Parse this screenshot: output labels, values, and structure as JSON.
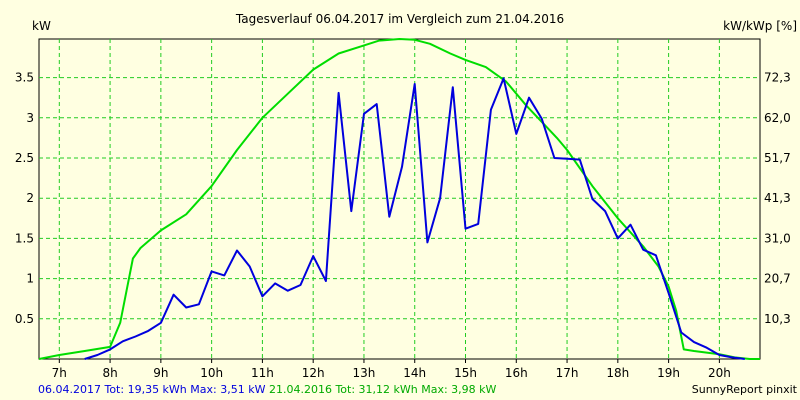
{
  "chart_data": {
    "type": "line",
    "title": "Tagesverlauf 06.04.2017 im Vergleich zum 21.04.2016",
    "y_left_label": "kW",
    "y_right_label": "kW/kWp [%]",
    "xlim": [
      6.6,
      20.8
    ],
    "ylim": [
      0,
      3.98
    ],
    "x_ticks": [
      {
        "x": 7,
        "label": "7h"
      },
      {
        "x": 8,
        "label": "8h"
      },
      {
        "x": 9,
        "label": "9h"
      },
      {
        "x": 10,
        "label": "10h"
      },
      {
        "x": 11,
        "label": "11h"
      },
      {
        "x": 12,
        "label": "12h"
      },
      {
        "x": 13,
        "label": "13h"
      },
      {
        "x": 14,
        "label": "14h"
      },
      {
        "x": 15,
        "label": "15h"
      },
      {
        "x": 16,
        "label": "16h"
      },
      {
        "x": 17,
        "label": "17h"
      },
      {
        "x": 18,
        "label": "18h"
      },
      {
        "x": 19,
        "label": "19h"
      },
      {
        "x": 20,
        "label": "20h"
      }
    ],
    "y_left_ticks": [
      {
        "y": 0.5,
        "label": "0.5"
      },
      {
        "y": 1,
        "label": "1"
      },
      {
        "y": 1.5,
        "label": "1.5"
      },
      {
        "y": 2,
        "label": "2"
      },
      {
        "y": 2.5,
        "label": "2.5"
      },
      {
        "y": 3,
        "label": "3"
      },
      {
        "y": 3.5,
        "label": "3.5"
      }
    ],
    "y_right_ticks": [
      {
        "y": 0.5,
        "label": "10,3"
      },
      {
        "y": 1,
        "label": "20,7"
      },
      {
        "y": 1.5,
        "label": "31,0"
      },
      {
        "y": 2,
        "label": "41,3"
      },
      {
        "y": 2.5,
        "label": "51,7"
      },
      {
        "y": 3,
        "label": "62,0"
      },
      {
        "y": 3.5,
        "label": "72,3"
      }
    ],
    "grid": true,
    "series": [
      {
        "name": "06.04.2017",
        "color": "#0000dd",
        "x": [
          7.5,
          7.75,
          8.0,
          8.25,
          8.5,
          8.75,
          9.0,
          9.25,
          9.5,
          9.75,
          10.0,
          10.25,
          10.5,
          10.75,
          11.0,
          11.25,
          11.5,
          11.75,
          12.0,
          12.25,
          12.5,
          12.75,
          13.0,
          13.25,
          13.5,
          13.75,
          14.0,
          14.25,
          14.5,
          14.75,
          15.0,
          15.25,
          15.5,
          15.75,
          16.0,
          16.25,
          16.5,
          16.75,
          17.0,
          17.25,
          17.5,
          17.75,
          18.0,
          18.25,
          18.5,
          18.75,
          19.0,
          19.25,
          19.5,
          19.75,
          20.0,
          20.25,
          20.5
        ],
        "y": [
          0.0,
          0.05,
          0.12,
          0.22,
          0.28,
          0.35,
          0.45,
          0.8,
          0.64,
          0.68,
          1.09,
          1.04,
          1.35,
          1.15,
          0.78,
          0.94,
          0.85,
          0.92,
          1.28,
          0.97,
          3.31,
          1.84,
          3.05,
          3.17,
          1.77,
          2.39,
          3.42,
          1.45,
          2.0,
          3.38,
          1.62,
          1.68,
          3.1,
          3.49,
          2.8,
          3.25,
          2.99,
          2.5,
          2.49,
          2.48,
          1.99,
          1.84,
          1.5,
          1.67,
          1.36,
          1.29,
          0.82,
          0.33,
          0.21,
          0.14,
          0.05,
          0.02,
          0.0
        ]
      },
      {
        "name": "21.04.2016",
        "color": "#00dd00",
        "x": [
          6.6,
          7.0,
          7.5,
          8.0,
          8.2,
          8.45,
          8.6,
          9.0,
          9.5,
          10.0,
          10.5,
          11.0,
          11.5,
          12.0,
          12.5,
          13.0,
          13.3,
          13.7,
          14.0,
          14.3,
          14.7,
          15.0,
          15.4,
          15.8,
          16.2,
          16.5,
          16.8,
          17.0,
          17.5,
          18.0,
          18.5,
          18.8,
          19.0,
          19.15,
          19.3,
          19.5,
          20.0,
          20.3,
          20.6,
          20.8
        ],
        "y": [
          0.0,
          0.05,
          0.1,
          0.15,
          0.45,
          1.25,
          1.38,
          1.6,
          1.8,
          2.15,
          2.6,
          3.0,
          3.3,
          3.6,
          3.8,
          3.9,
          3.96,
          3.98,
          3.97,
          3.92,
          3.8,
          3.72,
          3.63,
          3.45,
          3.15,
          2.95,
          2.75,
          2.6,
          2.15,
          1.75,
          1.4,
          1.15,
          0.9,
          0.6,
          0.12,
          0.1,
          0.06,
          0.02,
          0.0,
          0.0
        ]
      }
    ],
    "footer": [
      {
        "text": "06.04.2017 Tot: 19,35 kWh Max: 3,51 kW",
        "color": "#0000dd"
      },
      {
        "text": " 21.04.2016 Tot: 31,12 kWh Max: 3,98 kW",
        "color": "#00aa00"
      }
    ],
    "credit": "SunnyReport pinxit"
  }
}
